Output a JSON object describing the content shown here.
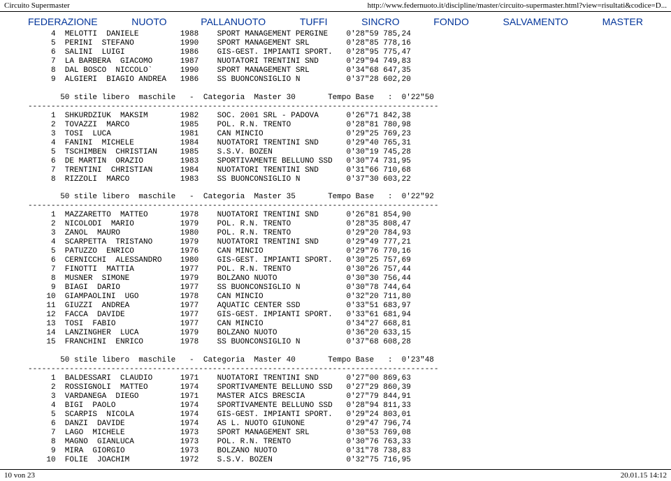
{
  "topbar": {
    "left": "Circuito Supermaster",
    "right": "http://www.federnuoto.it/discipline/master/circuito-supermaster.html?view=risultati&codice=D..."
  },
  "nav": {
    "items": [
      "FEDERAZIONE",
      "NUOTO",
      "PALLANUOTO",
      "TUFFI",
      "SINCRO",
      "FONDO",
      "SALVAMENTO",
      "MASTER"
    ]
  },
  "footer": {
    "left": "10 von 23",
    "right": "20.01.15 14:12"
  },
  "style": {
    "nav_link_color": "#003399",
    "mono_font": "Courier New",
    "mono_fontsize": 11,
    "background": "#ffffff",
    "text_color": "#000000"
  },
  "block0_rows": [
    {
      "n": "4",
      "name": "MELOTTI  DANIELE",
      "yr": "1988",
      "club": "SPORT MANAGEMENT PERGINE",
      "time": "0'28\"59",
      "pts": "785,24"
    },
    {
      "n": "5",
      "name": "PERINI  STEFANO",
      "yr": "1990",
      "club": "SPORT MANAGEMENT SRL",
      "time": "0'28\"85",
      "pts": "778,16"
    },
    {
      "n": "6",
      "name": "SALINI  LUIGI",
      "yr": "1986",
      "club": "GIS-GEST. IMPIANTI SPORT.",
      "time": "0'28\"95",
      "pts": "775,47"
    },
    {
      "n": "7",
      "name": "LA BARBERA  GIACOMO",
      "yr": "1987",
      "club": "NUOTATORI TRENTINI SND",
      "time": "0'29\"94",
      "pts": "749,83"
    },
    {
      "n": "8",
      "name": "DAL BOSCO  NICCOLO`",
      "yr": "1990",
      "club": "SPORT MANAGEMENT SRL",
      "time": "0'34\"68",
      "pts": "647,35"
    },
    {
      "n": "9",
      "name": "ALGIERI  BIAGIO ANDREA",
      "yr": "1986",
      "club": "SS BUONCONSIGLIO N",
      "time": "0'37\"28",
      "pts": "602,20"
    }
  ],
  "heading1": "       50 stile libero  maschile   -  Categoria  Master 30       Tempo Base   :  0'22\"50",
  "block1_rows": [
    {
      "n": "1",
      "name": "SHKURDZIUK  MAKSIM",
      "yr": "1982",
      "club": "SOC. 2001 SRL - PADOVA",
      "time": "0'26\"71",
      "pts": "842,38"
    },
    {
      "n": "2",
      "name": "TOVAZZI  MARCO",
      "yr": "1985",
      "club": "POL. R.N. TRENTO",
      "time": "0'28\"81",
      "pts": "780,98"
    },
    {
      "n": "3",
      "name": "TOSI  LUCA",
      "yr": "1981",
      "club": "CAN MINCIO",
      "time": "0'29\"25",
      "pts": "769,23"
    },
    {
      "n": "4",
      "name": "FANINI  MICHELE",
      "yr": "1984",
      "club": "NUOTATORI TRENTINI SND",
      "time": "0'29\"40",
      "pts": "765,31"
    },
    {
      "n": "5",
      "name": "TSCHIMBEN  CHRISTIAN",
      "yr": "1985",
      "club": "S.S.V. BOZEN",
      "time": "0'30\"19",
      "pts": "745,28"
    },
    {
      "n": "6",
      "name": "DE MARTIN  ORAZIO",
      "yr": "1983",
      "club": "SPORTIVAMENTE BELLUNO SSD",
      "time": "0'30\"74",
      "pts": "731,95"
    },
    {
      "n": "7",
      "name": "TRENTINI  CHRISTIAN",
      "yr": "1984",
      "club": "NUOTATORI TRENTINI SND",
      "time": "0'31\"66",
      "pts": "710,68"
    },
    {
      "n": "8",
      "name": "RIZZOLI  MARCO",
      "yr": "1983",
      "club": "SS BUONCONSIGLIO N",
      "time": "0'37\"30",
      "pts": "603,22"
    }
  ],
  "heading2": "       50 stile libero  maschile   -  Categoria  Master 35       Tempo Base   :  0'22\"92",
  "block2_rows": [
    {
      "n": "1",
      "name": "MAZZARETTO  MATTEO",
      "yr": "1978",
      "club": "NUOTATORI TRENTINI SND",
      "time": "0'26\"81",
      "pts": "854,90"
    },
    {
      "n": "2",
      "name": "NICOLODI  MARIO",
      "yr": "1979",
      "club": "POL. R.N. TRENTO",
      "time": "0'28\"35",
      "pts": "808,47"
    },
    {
      "n": "3",
      "name": "ZANOL  MAURO",
      "yr": "1980",
      "club": "POL. R.N. TRENTO",
      "time": "0'29\"20",
      "pts": "784,93"
    },
    {
      "n": "4",
      "name": "SCARPETTA  TRISTANO",
      "yr": "1979",
      "club": "NUOTATORI TRENTINI SND",
      "time": "0'29\"49",
      "pts": "777,21"
    },
    {
      "n": "5",
      "name": "PATUZZO  ENRICO",
      "yr": "1976",
      "club": "CAN MINCIO",
      "time": "0'29\"76",
      "pts": "770,16"
    },
    {
      "n": "6",
      "name": "CERNICCHI  ALESSANDRO",
      "yr": "1980",
      "club": "GIS-GEST. IMPIANTI SPORT.",
      "time": "0'30\"25",
      "pts": "757,69"
    },
    {
      "n": "7",
      "name": "FINOTTI  MATTIA",
      "yr": "1977",
      "club": "POL. R.N. TRENTO",
      "time": "0'30\"26",
      "pts": "757,44"
    },
    {
      "n": "8",
      "name": "MUSNER  SIMONE",
      "yr": "1979",
      "club": "BOLZANO NUOTO",
      "time": "0'30\"30",
      "pts": "756,44"
    },
    {
      "n": "9",
      "name": "BIAGI  DARIO",
      "yr": "1977",
      "club": "SS BUONCONSIGLIO N",
      "time": "0'30\"78",
      "pts": "744,64"
    },
    {
      "n": "10",
      "name": "GIAMPAOLINI  UGO",
      "yr": "1978",
      "club": "CAN MINCIO",
      "time": "0'32\"20",
      "pts": "711,80"
    },
    {
      "n": "11",
      "name": "GIUZZI  ANDREA",
      "yr": "1977",
      "club": "AQUATIC CENTER SSD",
      "time": "0'33\"51",
      "pts": "683,97"
    },
    {
      "n": "12",
      "name": "FACCA  DAVIDE",
      "yr": "1977",
      "club": "GIS-GEST. IMPIANTI SPORT.",
      "time": "0'33\"61",
      "pts": "681,94"
    },
    {
      "n": "13",
      "name": "TOSI  FABIO",
      "yr": "1977",
      "club": "CAN MINCIO",
      "time": "0'34\"27",
      "pts": "668,81"
    },
    {
      "n": "14",
      "name": "LANZINGHER  LUCA",
      "yr": "1979",
      "club": "BOLZANO NUOTO",
      "time": "0'36\"20",
      "pts": "633,15"
    },
    {
      "n": "15",
      "name": "FRANCHINI  ENRICO",
      "yr": "1978",
      "club": "SS BUONCONSIGLIO N",
      "time": "0'37\"68",
      "pts": "608,28"
    }
  ],
  "heading3": "       50 stile libero  maschile   -  Categoria  Master 40       Tempo Base   :  0'23\"48",
  "block3_rows": [
    {
      "n": "1",
      "name": "BALDESSARI  CLAUDIO",
      "yr": "1971",
      "club": "NUOTATORI TRENTINI SND",
      "time": "0'27\"00",
      "pts": "869,63"
    },
    {
      "n": "2",
      "name": "ROSSIGNOLI  MATTEO",
      "yr": "1974",
      "club": "SPORTIVAMENTE BELLUNO SSD",
      "time": "0'27\"29",
      "pts": "860,39"
    },
    {
      "n": "3",
      "name": "VARDANEGA  DIEGO",
      "yr": "1971",
      "club": "MASTER AICS BRESCIA",
      "time": "0'27\"79",
      "pts": "844,91"
    },
    {
      "n": "4",
      "name": "BIGI  PAOLO",
      "yr": "1974",
      "club": "SPORTIVAMENTE BELLUNO SSD",
      "time": "0'28\"94",
      "pts": "811,33"
    },
    {
      "n": "5",
      "name": "SCARPIS  NICOLA",
      "yr": "1974",
      "club": "GIS-GEST. IMPIANTI SPORT.",
      "time": "0'29\"24",
      "pts": "803,01"
    },
    {
      "n": "6",
      "name": "DANZI  DAVIDE",
      "yr": "1974",
      "club": "AS L. NUOTO GIUNONE",
      "time": "0'29\"47",
      "pts": "796,74"
    },
    {
      "n": "7",
      "name": "LAGO  MICHELE",
      "yr": "1973",
      "club": "SPORT MANAGEMENT SRL",
      "time": "0'30\"53",
      "pts": "769,08"
    },
    {
      "n": "8",
      "name": "MAGNO  GIANLUCA",
      "yr": "1973",
      "club": "POL. R.N. TRENTO",
      "time": "0'30\"76",
      "pts": "763,33"
    },
    {
      "n": "9",
      "name": "MIRA  GIORGIO",
      "yr": "1973",
      "club": "BOLZANO NUOTO",
      "time": "0'31\"78",
      "pts": "738,83"
    },
    {
      "n": "10",
      "name": "FOLIE  JOACHIM",
      "yr": "1972",
      "club": "S.S.V. BOZEN",
      "time": "0'32\"75",
      "pts": "716,95"
    }
  ],
  "layout": {
    "col_n_rightalign_width": 4,
    "col_name_width": 25,
    "col_yr_width": 4,
    "col_club_width": 29,
    "col_time_width": 7,
    "dash_line_len": 89
  }
}
